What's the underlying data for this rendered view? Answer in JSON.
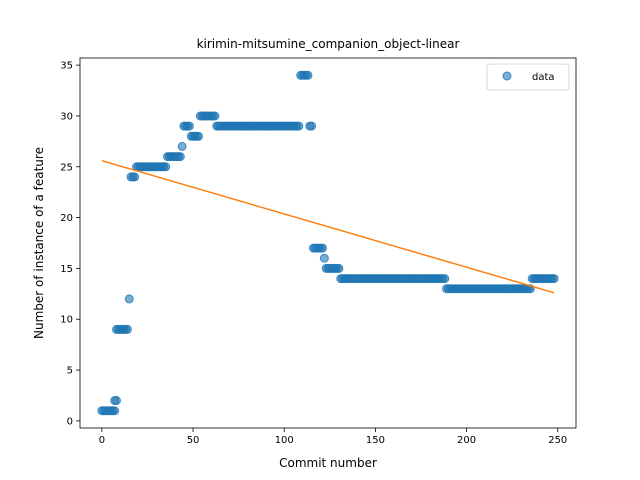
{
  "chart_data": {
    "type": "scatter",
    "title": "kirimin-mitsumine_companion_object-linear",
    "xlabel": "Commit number",
    "ylabel": "Number of instance of a feature",
    "xlim": [
      -12,
      260
    ],
    "ylim": [
      -0.7,
      35.7
    ],
    "xticks": [
      0,
      50,
      100,
      150,
      200,
      250
    ],
    "yticks": [
      0,
      5,
      10,
      15,
      20,
      25,
      30,
      35
    ],
    "legend_position": "top-right",
    "grid": false,
    "series": [
      {
        "name": "data",
        "kind": "points",
        "color": "#1f77b4",
        "segments": [
          {
            "x_start": 0,
            "x_end": 7,
            "y": 1
          },
          {
            "x_start": 7,
            "x_end": 8,
            "y": 2
          },
          {
            "x_start": 8,
            "x_end": 14,
            "y": 9
          },
          {
            "x_start": 15,
            "x_end": 15,
            "y": 12
          },
          {
            "x_start": 16,
            "x_end": 18,
            "y": 24
          },
          {
            "x_start": 19,
            "x_end": 35,
            "y": 25
          },
          {
            "x_start": 36,
            "x_end": 43,
            "y": 26
          },
          {
            "x_start": 44,
            "x_end": 44,
            "y": 27
          },
          {
            "x_start": 45,
            "x_end": 48,
            "y": 29
          },
          {
            "x_start": 49,
            "x_end": 53,
            "y": 28
          },
          {
            "x_start": 54,
            "x_end": 62,
            "y": 30
          },
          {
            "x_start": 63,
            "x_end": 108,
            "y": 29
          },
          {
            "x_start": 109,
            "x_end": 113,
            "y": 34
          },
          {
            "x_start": 114,
            "x_end": 115,
            "y": 29
          },
          {
            "x_start": 116,
            "x_end": 121,
            "y": 17
          },
          {
            "x_start": 122,
            "x_end": 122,
            "y": 16
          },
          {
            "x_start": 123,
            "x_end": 130,
            "y": 15
          },
          {
            "x_start": 131,
            "x_end": 188,
            "y": 14
          },
          {
            "x_start": 189,
            "x_end": 235,
            "y": 13
          },
          {
            "x_start": 236,
            "x_end": 248,
            "y": 14
          }
        ]
      },
      {
        "name": "",
        "kind": "line",
        "color": "#ff7f0e",
        "x": [
          0,
          248
        ],
        "y": [
          25.6,
          12.6
        ]
      }
    ]
  }
}
